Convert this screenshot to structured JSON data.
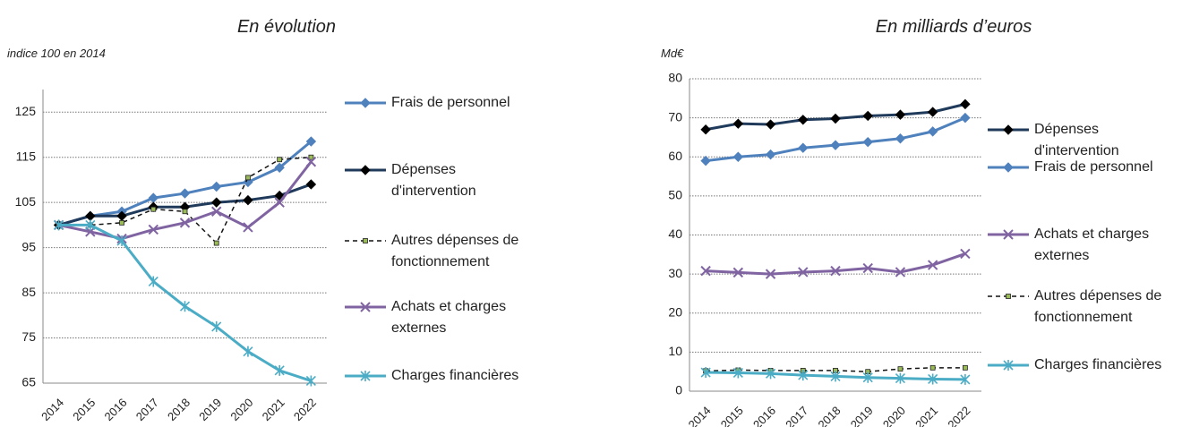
{
  "chart_data": [
    {
      "type": "line",
      "title": "En évolution",
      "y_label": "indice 100 en 2014",
      "categories": [
        "2014",
        "2015",
        "2016",
        "2017",
        "2018",
        "2019",
        "2020",
        "2021",
        "2022"
      ],
      "ylim": [
        65,
        130
      ],
      "yticks": [
        65,
        75,
        85,
        95,
        105,
        115,
        125
      ],
      "grid": true,
      "series": [
        {
          "name": "Frais de personnel",
          "color": "#4f81bd",
          "marker": "diamond",
          "values": [
            100,
            102,
            103,
            106,
            107,
            108.5,
            109.5,
            112.7,
            118.5
          ]
        },
        {
          "name": "Dépenses d'intervention",
          "color": "#1f3a5a",
          "marker": "diamond-black",
          "values": [
            100,
            102,
            102,
            104,
            104,
            105,
            105.5,
            106.5,
            109
          ]
        },
        {
          "name": "Autres dépenses de fonctionnement",
          "color": "#111111",
          "marker": "square",
          "dash": true,
          "values": [
            100,
            100,
            100.5,
            103.5,
            103,
            96,
            110.5,
            114.5,
            115
          ]
        },
        {
          "name": "Achats et charges externes",
          "color": "#8064a2",
          "marker": "x",
          "values": [
            100,
            98.5,
            97,
            99,
            100.5,
            103,
            99.5,
            105,
            114
          ]
        },
        {
          "name": "Charges financières",
          "color": "#4bacc6",
          "marker": "star",
          "values": [
            100,
            100,
            96.5,
            87.5,
            82,
            77.5,
            72,
            67.8,
            65.5
          ]
        }
      ]
    },
    {
      "type": "line",
      "title": "En milliards d’euros",
      "y_label": "Md€",
      "categories": [
        "2014",
        "2015",
        "2016",
        "2017",
        "2018",
        "2019",
        "2020",
        "2021",
        "2022"
      ],
      "ylim": [
        0,
        80
      ],
      "yticks": [
        0,
        10,
        20,
        30,
        40,
        50,
        60,
        70,
        80
      ],
      "grid": true,
      "series": [
        {
          "name": "Dépenses d'intervention",
          "color": "#1f3a5a",
          "marker": "diamond-black",
          "values": [
            67,
            68.5,
            68.3,
            69.5,
            69.8,
            70.5,
            70.8,
            71.5,
            73.5
          ]
        },
        {
          "name": "Frais de personnel",
          "color": "#4f81bd",
          "marker": "diamond",
          "values": [
            59,
            60,
            60.6,
            62.3,
            63,
            63.8,
            64.7,
            66.5,
            70
          ]
        },
        {
          "name": "Achats et charges externes",
          "color": "#8064a2",
          "marker": "x",
          "values": [
            30.8,
            30.4,
            30,
            30.5,
            30.8,
            31.5,
            30.5,
            32.3,
            35.2
          ]
        },
        {
          "name": "Autres dépenses de fonctionnement",
          "color": "#111111",
          "marker": "square",
          "dash": true,
          "values": [
            5.2,
            5.4,
            5.3,
            5.3,
            5.3,
            5,
            5.7,
            6,
            6
          ]
        },
        {
          "name": "Charges financières",
          "color": "#4bacc6",
          "marker": "star",
          "values": [
            4.8,
            4.7,
            4.5,
            4.1,
            3.8,
            3.5,
            3.3,
            3.1,
            3
          ]
        }
      ]
    }
  ]
}
